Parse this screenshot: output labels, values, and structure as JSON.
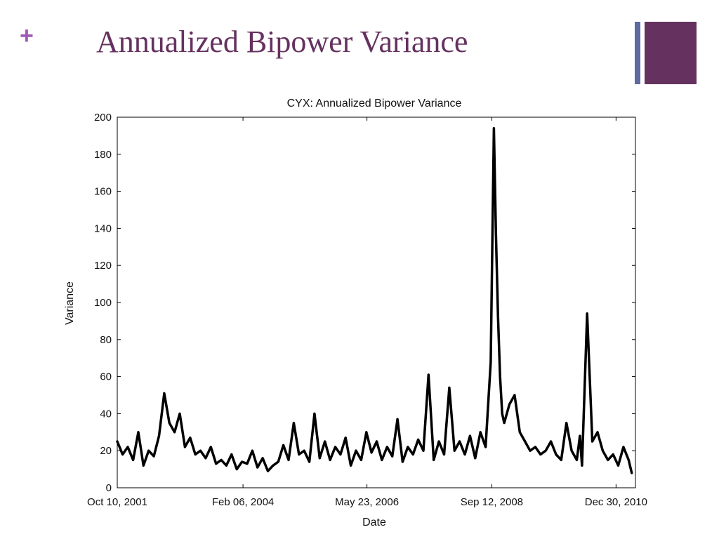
{
  "slide": {
    "plus_symbol": "+",
    "title": "Annualized Bipower Variance"
  },
  "colors": {
    "accent_purple": "#65325f",
    "plus_pink": "#a05ab4",
    "bar_slate": "#5f6aa0",
    "line": "#000000"
  },
  "chart_data": {
    "type": "line",
    "title": "CYX: Annualized Bipower Variance",
    "xlabel": "Date",
    "ylabel": "Variance",
    "ylim": [
      0,
      200
    ],
    "yticks": [
      0,
      20,
      40,
      60,
      80,
      100,
      120,
      140,
      160,
      180,
      200
    ],
    "xlim": [
      "2001-10-10",
      "2011-05-10"
    ],
    "xticks": [
      {
        "date": "2001-10-10",
        "label": "Oct 10, 2001"
      },
      {
        "date": "2004-02-06",
        "label": "Feb 06, 2004"
      },
      {
        "date": "2006-05-23",
        "label": "May 23, 2006"
      },
      {
        "date": "2008-09-12",
        "label": "Sep 12, 2008"
      },
      {
        "date": "2010-12-30",
        "label": "Dec 30, 2010"
      }
    ],
    "grid": false,
    "series": [
      {
        "x": [
          "2001-10-10",
          "2001-11-15",
          "2001-12-20",
          "2002-01-25",
          "2002-03-01",
          "2002-04-05",
          "2002-05-10",
          "2002-06-14",
          "2002-07-19",
          "2002-08-23",
          "2002-09-27",
          "2002-11-01",
          "2002-12-06",
          "2003-01-10",
          "2003-02-14",
          "2003-03-21",
          "2003-04-25",
          "2003-05-30",
          "2003-07-04",
          "2003-08-08",
          "2003-09-12",
          "2003-10-17",
          "2003-11-21",
          "2003-12-26",
          "2004-01-30",
          "2004-03-05",
          "2004-04-09",
          "2004-05-14",
          "2004-06-18",
          "2004-07-23",
          "2004-08-27",
          "2004-10-01",
          "2004-11-05",
          "2004-12-10",
          "2005-01-14",
          "2005-02-18",
          "2005-03-25",
          "2005-04-29",
          "2005-06-03",
          "2005-07-08",
          "2005-08-12",
          "2005-09-16",
          "2005-10-21",
          "2005-11-25",
          "2005-12-30",
          "2006-02-03",
          "2006-03-10",
          "2006-04-14",
          "2006-05-19",
          "2006-06-23",
          "2006-07-28",
          "2006-09-01",
          "2006-10-06",
          "2006-11-10",
          "2006-12-15",
          "2007-01-19",
          "2007-02-23",
          "2007-03-30",
          "2007-05-04",
          "2007-06-08",
          "2007-07-13",
          "2007-08-17",
          "2007-09-21",
          "2007-10-26",
          "2007-11-30",
          "2008-01-04",
          "2008-02-08",
          "2008-03-14",
          "2008-04-18",
          "2008-05-23",
          "2008-06-27",
          "2008-08-01",
          "2008-09-05",
          "2008-09-26",
          "2008-10-10",
          "2008-10-24",
          "2008-11-07",
          "2008-11-21",
          "2008-12-05",
          "2009-01-09",
          "2009-02-13",
          "2009-03-20",
          "2009-04-24",
          "2009-05-29",
          "2009-07-03",
          "2009-08-07",
          "2009-09-11",
          "2009-10-16",
          "2009-11-20",
          "2009-12-25",
          "2010-01-29",
          "2010-03-05",
          "2010-04-09",
          "2010-04-30",
          "2010-05-14",
          "2010-06-18",
          "2010-07-23",
          "2010-08-27",
          "2010-10-01",
          "2010-11-05",
          "2010-12-10",
          "2011-01-14",
          "2011-02-18",
          "2011-03-25",
          "2011-04-15"
        ],
        "y": [
          25,
          18,
          22,
          15,
          30,
          12,
          20,
          17,
          28,
          51,
          35,
          30,
          40,
          22,
          27,
          18,
          20,
          16,
          22,
          13,
          15,
          12,
          18,
          10,
          14,
          13,
          20,
          11,
          16,
          9,
          12,
          14,
          23,
          15,
          35,
          18,
          20,
          14,
          40,
          16,
          25,
          15,
          22,
          18,
          27,
          12,
          20,
          15,
          30,
          19,
          25,
          15,
          22,
          17,
          37,
          14,
          22,
          18,
          26,
          20,
          61,
          15,
          25,
          18,
          54,
          20,
          25,
          18,
          28,
          16,
          30,
          22,
          68,
          194,
          137,
          92,
          60,
          40,
          35,
          45,
          50,
          30,
          25,
          20,
          22,
          18,
          20,
          25,
          18,
          15,
          35,
          20,
          15,
          28,
          12,
          94,
          25,
          30,
          20,
          15,
          18,
          12,
          22,
          15,
          8
        ]
      }
    ]
  }
}
